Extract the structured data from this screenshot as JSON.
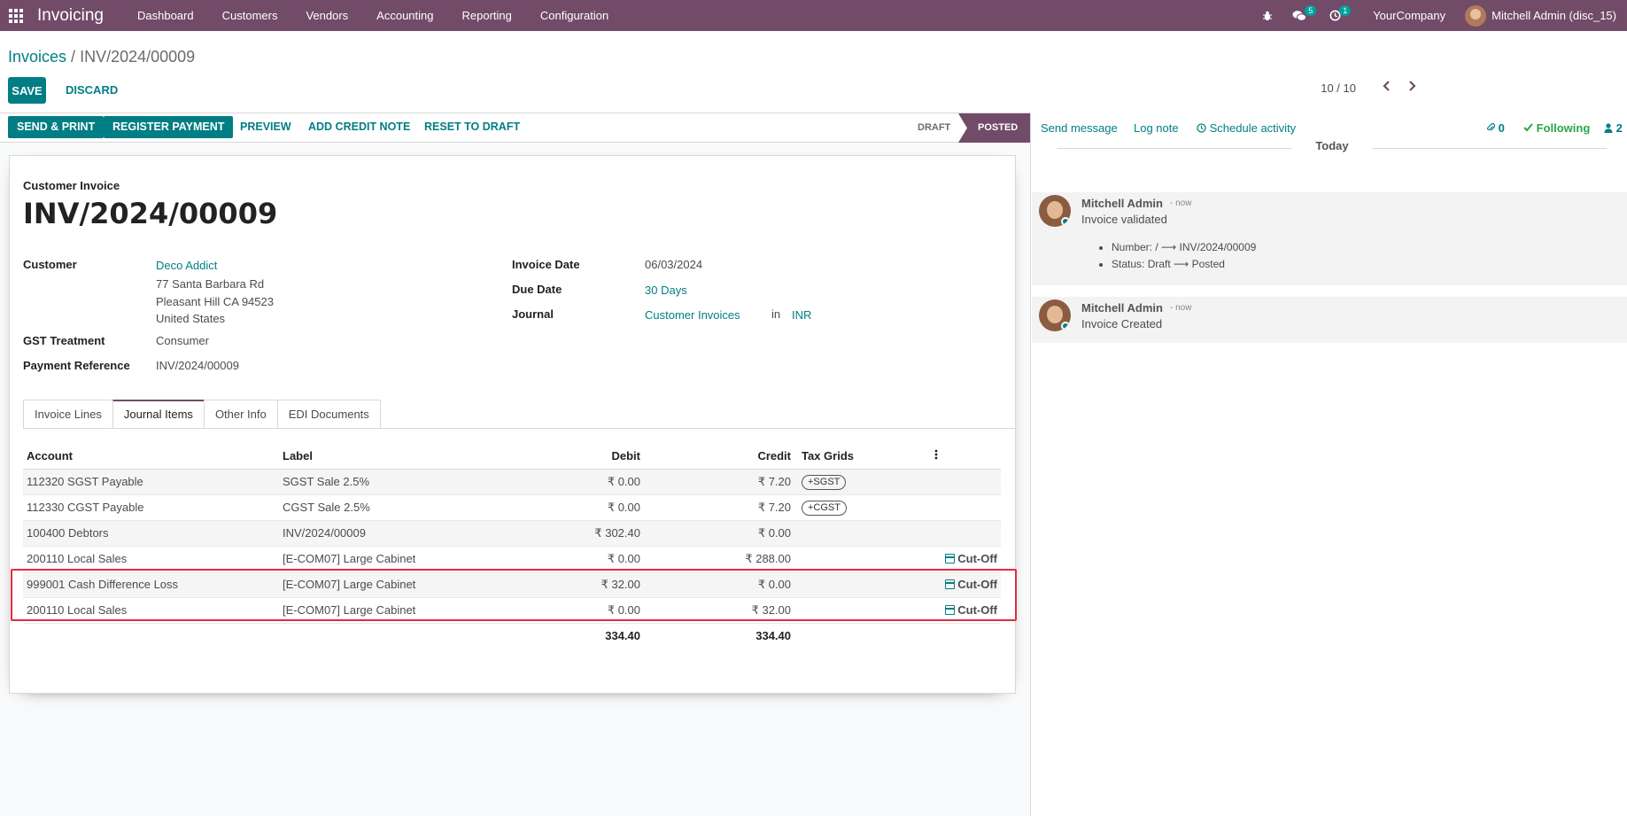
{
  "navbar": {
    "app_name": "Invoicing",
    "menus": [
      "Dashboard",
      "Customers",
      "Vendors",
      "Accounting",
      "Reporting",
      "Configuration"
    ],
    "messages_badge": "5",
    "activities_badge": "1",
    "company": "YourCompany",
    "user": "Mitchell Admin (disc_15)"
  },
  "control_panel": {
    "breadcrumb_parent": "Invoices",
    "breadcrumb_sep": " / ",
    "breadcrumb_current": "INV/2024/00009",
    "save_label": "SAVE",
    "discard_label": "DISCARD",
    "pager": "10 / 10"
  },
  "statusbar": {
    "send_print": "SEND & PRINT",
    "register_payment": "REGISTER PAYMENT",
    "preview": "PREVIEW",
    "add_credit_note": "ADD CREDIT NOTE",
    "reset_to_draft": "RESET TO DRAFT",
    "state_draft": "DRAFT",
    "state_posted": "POSTED"
  },
  "form": {
    "doc_type": "Customer Invoice",
    "doc_name": "INV/2024/00009",
    "customer_label": "Customer",
    "customer_name": "Deco Addict",
    "address_line1": "77 Santa Barbara Rd",
    "address_line2": "Pleasant Hill CA 94523",
    "address_line3": "United States",
    "gst_label": "GST Treatment",
    "gst_value": "Consumer",
    "payref_label": "Payment Reference",
    "payref_value": "INV/2024/00009",
    "invoice_date_label": "Invoice Date",
    "invoice_date_value": "06/03/2024",
    "due_date_label": "Due Date",
    "due_date_value": "30 Days",
    "journal_label": "Journal",
    "journal_value": "Customer Invoices",
    "journal_in": "in",
    "currency": "INR"
  },
  "tabs": [
    "Invoice Lines",
    "Journal Items",
    "Other Info",
    "EDI Documents"
  ],
  "journal_items": {
    "headers": {
      "account": "Account",
      "label": "Label",
      "debit": "Debit",
      "credit": "Credit",
      "tax_grids": "Tax Grids"
    },
    "rows": [
      {
        "account": "112320 SGST Payable",
        "label": "SGST Sale 2.5%",
        "debit": "₹ 0.00",
        "credit": "₹ 7.20",
        "tag": "+SGST",
        "cutoff": ""
      },
      {
        "account": "112330 CGST Payable",
        "label": "CGST Sale 2.5%",
        "debit": "₹ 0.00",
        "credit": "₹ 7.20",
        "tag": "+CGST",
        "cutoff": ""
      },
      {
        "account": "100400 Debtors",
        "label": "INV/2024/00009",
        "debit": "₹ 302.40",
        "credit": "₹ 0.00",
        "tag": "",
        "cutoff": ""
      },
      {
        "account": "200110 Local Sales",
        "label": "[E-COM07] Large Cabinet",
        "debit": "₹ 0.00",
        "credit": "₹ 288.00",
        "tag": "",
        "cutoff": "Cut-Off"
      },
      {
        "account": "999001 Cash Difference Loss",
        "label": "[E-COM07] Large Cabinet",
        "debit": "₹ 32.00",
        "credit": "₹ 0.00",
        "tag": "",
        "cutoff": "Cut-Off"
      },
      {
        "account": "200110 Local Sales",
        "label": "[E-COM07] Large Cabinet",
        "debit": "₹ 0.00",
        "credit": "₹ 32.00",
        "tag": "",
        "cutoff": "Cut-Off"
      }
    ],
    "total_debit": "334.40",
    "total_credit": "334.40"
  },
  "chatter": {
    "send_message": "Send message",
    "log_note": "Log note",
    "schedule_activity": "Schedule activity",
    "attachments_count": "0",
    "following": "Following",
    "followers_count": "2",
    "today": "Today",
    "messages": [
      {
        "author": "Mitchell Admin",
        "date": "- now",
        "body": "Invoice validated",
        "changes": [
          "Number: / ⟶ INV/2024/00009",
          "Status: Draft ⟶ Posted"
        ]
      },
      {
        "author": "Mitchell Admin",
        "date": "- now",
        "body": "Invoice Created",
        "changes": []
      }
    ]
  }
}
